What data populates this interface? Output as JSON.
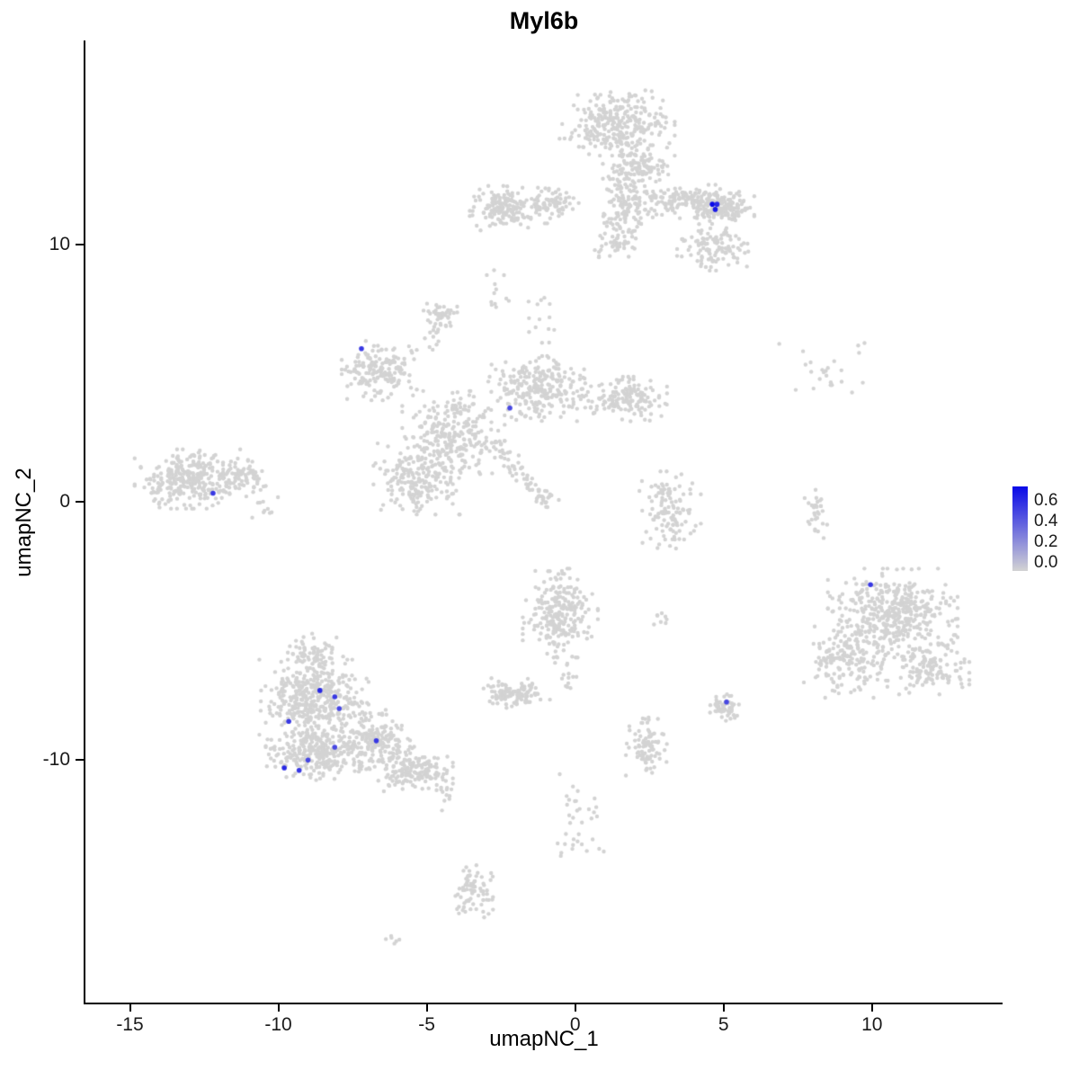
{
  "title": "Myl6b",
  "axes": {
    "x_label": "umapNC_1",
    "y_label": "umapNC_2",
    "x_ticks": [
      -15,
      -10,
      -5,
      0,
      5,
      10
    ],
    "y_ticks": [
      10,
      0,
      -10
    ],
    "xlim": [
      -16.5,
      14.4
    ],
    "ylim": [
      -19.4,
      17.9
    ]
  },
  "legend": {
    "labels": [
      "0.6",
      "0.4",
      "0.2",
      "0.0"
    ],
    "low_color": "#D3D3D3",
    "high_color": "#0909E8",
    "value_range": [
      0.0,
      0.65
    ]
  },
  "colors": {
    "point_gray": "#D3D3D3",
    "point_blue": "#0909E8",
    "axis": "#000000"
  },
  "chart_data": {
    "type": "scatter",
    "title": "Myl6b",
    "xlabel": "umapNC_1",
    "ylabel": "umapNC_2",
    "xlim": [
      -16.5,
      14.4
    ],
    "ylim": [
      -19.4,
      17.9
    ],
    "seed": 42,
    "point_radius_px": 2.2,
    "highlight_radius_px": 2.8,
    "clusters": [
      {
        "cx": 1.4,
        "cy": 14.7,
        "rx": 1.7,
        "ry": 1.1,
        "n": 280
      },
      {
        "cx": 2.0,
        "cy": 13.0,
        "rx": 1.0,
        "ry": 0.8,
        "n": 120
      },
      {
        "cx": 1.8,
        "cy": 11.6,
        "rx": 0.8,
        "ry": 1.0,
        "n": 90
      },
      {
        "cx": 3.6,
        "cy": 11.7,
        "rx": 1.5,
        "ry": 0.6,
        "n": 150
      },
      {
        "cx": 5.0,
        "cy": 11.4,
        "rx": 0.9,
        "ry": 0.6,
        "n": 150
      },
      {
        "cx": 4.7,
        "cy": 9.9,
        "rx": 1.1,
        "ry": 0.8,
        "n": 110
      },
      {
        "cx": 1.3,
        "cy": 10.3,
        "rx": 0.7,
        "ry": 0.9,
        "n": 35
      },
      {
        "cx": -2.4,
        "cy": 11.4,
        "rx": 1.0,
        "ry": 0.75,
        "n": 160
      },
      {
        "cx": -0.8,
        "cy": 11.5,
        "rx": 0.8,
        "ry": 0.6,
        "n": 80
      },
      {
        "cx": -4.55,
        "cy": 7.3,
        "rx": 0.5,
        "ry": 0.55,
        "n": 45
      },
      {
        "cx": -6.6,
        "cy": 5.1,
        "rx": 1.1,
        "ry": 1.0,
        "n": 170
      },
      {
        "cx": -5.3,
        "cy": 0.9,
        "rx": 1.3,
        "ry": 1.2,
        "n": 210
      },
      {
        "cx": -4.1,
        "cy": 2.7,
        "rx": 1.5,
        "ry": 1.4,
        "n": 260
      },
      {
        "cx": -1.2,
        "cy": 4.4,
        "rx": 1.5,
        "ry": 1.1,
        "n": 250
      },
      {
        "cx": 1.6,
        "cy": 4.0,
        "rx": 1.3,
        "ry": 0.75,
        "n": 150
      },
      {
        "cx": -13.0,
        "cy": 0.9,
        "rx": 1.6,
        "ry": 1.0,
        "n": 300
      },
      {
        "cx": -11.3,
        "cy": 1.0,
        "rx": 0.8,
        "ry": 0.6,
        "n": 70
      },
      {
        "cx": 3.2,
        "cy": -0.3,
        "rx": 0.9,
        "ry": 1.3,
        "n": 120
      },
      {
        "cx": 8.6,
        "cy": 5.2,
        "rx": 1.5,
        "ry": 1.2,
        "n": 24
      },
      {
        "cx": 8.1,
        "cy": -0.3,
        "rx": 0.35,
        "ry": 1.0,
        "n": 30
      },
      {
        "cx": 10.7,
        "cy": -4.3,
        "rx": 1.9,
        "ry": 1.5,
        "n": 430
      },
      {
        "cx": 9.2,
        "cy": -6.2,
        "rx": 1.3,
        "ry": 1.2,
        "n": 170
      },
      {
        "cx": 11.9,
        "cy": -6.3,
        "rx": 1.2,
        "ry": 1.0,
        "n": 130
      },
      {
        "cx": -0.5,
        "cy": -4.3,
        "rx": 1.1,
        "ry": 1.5,
        "n": 230
      },
      {
        "cx": 2.9,
        "cy": -4.6,
        "rx": 0.3,
        "ry": 0.4,
        "n": 8
      },
      {
        "cx": -8.8,
        "cy": -7.6,
        "rx": 1.6,
        "ry": 1.3,
        "n": 400
      },
      {
        "cx": -8.7,
        "cy": -9.7,
        "rx": 1.5,
        "ry": 1.0,
        "n": 280
      },
      {
        "cx": -6.7,
        "cy": -9.2,
        "rx": 1.1,
        "ry": 1.0,
        "n": 170
      },
      {
        "cx": -5.5,
        "cy": -10.4,
        "rx": 1.2,
        "ry": 0.8,
        "n": 150
      },
      {
        "cx": -8.9,
        "cy": -5.9,
        "rx": 1.0,
        "ry": 0.7,
        "n": 70
      },
      {
        "cx": -2.0,
        "cy": -7.4,
        "rx": 1.0,
        "ry": 0.5,
        "n": 110
      },
      {
        "cx": 5.0,
        "cy": -7.9,
        "rx": 0.45,
        "ry": 0.5,
        "n": 55
      },
      {
        "cx": 2.4,
        "cy": -9.5,
        "rx": 0.6,
        "ry": 1.2,
        "n": 90
      },
      {
        "cx": 0.3,
        "cy": -12.5,
        "rx": 1.1,
        "ry": 1.7,
        "n": 35
      },
      {
        "cx": -3.4,
        "cy": -15.1,
        "rx": 0.55,
        "ry": 1.1,
        "n": 75
      },
      {
        "cx": -6.2,
        "cy": -17.0,
        "rx": 0.3,
        "ry": 0.3,
        "n": 6
      }
    ],
    "trails": [
      {
        "x1": -2.8,
        "y1": 2.3,
        "x2": -0.8,
        "y2": -0.1,
        "jitter": 0.15,
        "n": 70
      },
      {
        "x1": 1.7,
        "y1": 12.3,
        "x2": 1.4,
        "y2": 9.6,
        "jitter": 0.3,
        "n": 40
      },
      {
        "x1": -4.6,
        "y1": 6.8,
        "x2": -5.0,
        "y2": 6.0,
        "jitter": 0.2,
        "n": 12
      },
      {
        "x1": -2.9,
        "y1": 9.0,
        "x2": -2.6,
        "y2": 7.6,
        "jitter": 0.25,
        "n": 12
      },
      {
        "x1": -1.6,
        "y1": 7.9,
        "x2": -1.2,
        "y2": 6.2,
        "jitter": 0.3,
        "n": 14
      },
      {
        "x1": -0.3,
        "y1": -6.2,
        "x2": -0.2,
        "y2": -7.6,
        "jitter": 0.2,
        "n": 14
      },
      {
        "x1": -5.2,
        "y1": -10.2,
        "x2": -4.2,
        "y2": -11.3,
        "jitter": 0.3,
        "n": 30
      },
      {
        "x1": -11.0,
        "y1": 0.6,
        "x2": -10.3,
        "y2": -0.4,
        "jitter": 0.2,
        "n": 15
      }
    ],
    "highlight_points": [
      {
        "x": 4.62,
        "y": 11.55,
        "v": 0.65
      },
      {
        "x": 4.72,
        "y": 11.35,
        "v": 0.6
      },
      {
        "x": 4.78,
        "y": 11.55,
        "v": 0.55
      },
      {
        "x": -7.2,
        "y": 5.95,
        "v": 0.5
      },
      {
        "x": -2.2,
        "y": 3.65,
        "v": 0.45
      },
      {
        "x": -12.2,
        "y": 0.35,
        "v": 0.5
      },
      {
        "x": 9.95,
        "y": -3.2,
        "v": 0.5
      },
      {
        "x": 5.1,
        "y": -7.75,
        "v": 0.45
      },
      {
        "x": -8.6,
        "y": -7.3,
        "v": 0.55
      },
      {
        "x": -8.1,
        "y": -7.55,
        "v": 0.5
      },
      {
        "x": -7.95,
        "y": -8.0,
        "v": 0.45
      },
      {
        "x": -9.65,
        "y": -8.5,
        "v": 0.5
      },
      {
        "x": -6.7,
        "y": -9.25,
        "v": 0.5
      },
      {
        "x": -8.1,
        "y": -9.5,
        "v": 0.45
      },
      {
        "x": -9.8,
        "y": -10.3,
        "v": 0.55
      },
      {
        "x": -9.3,
        "y": -10.4,
        "v": 0.5
      },
      {
        "x": -9.0,
        "y": -10.0,
        "v": 0.45
      }
    ]
  }
}
